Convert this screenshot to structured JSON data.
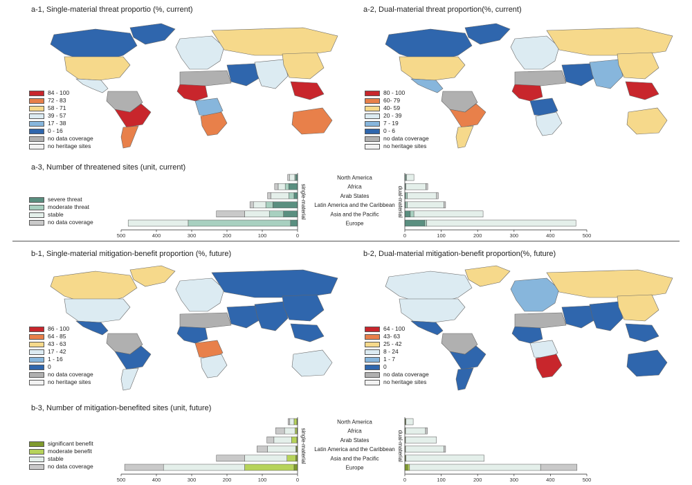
{
  "panels": {
    "a1": {
      "title": "a-1, Single-material threat proportio (%, current)",
      "legend": [
        {
          "label": "84 - 100",
          "color": "#c8262c"
        },
        {
          "label": "72 - 83",
          "color": "#e8804a"
        },
        {
          "label": "58 - 71",
          "color": "#f6d98b"
        },
        {
          "label": "39 - 57",
          "color": "#dcebf2"
        },
        {
          "label": "17 - 38",
          "color": "#87b6dc"
        },
        {
          "label": "0 - 16",
          "color": "#2f66ad"
        },
        {
          "label": "no data coverage",
          "color": "#b0b0b0"
        },
        {
          "label": "no heritage sites",
          "color": "#f2f2f2"
        }
      ]
    },
    "a2": {
      "title": "a-2, Dual-material threat proportion(%, current)",
      "legend": [
        {
          "label": "80 - 100",
          "color": "#c8262c"
        },
        {
          "label": "60- 79",
          "color": "#e8804a"
        },
        {
          "label": "40- 59",
          "color": "#f6d98b"
        },
        {
          "label": "20 - 39",
          "color": "#dcebf2"
        },
        {
          "label": "7 - 19",
          "color": "#87b6dc"
        },
        {
          "label": "0 - 6",
          "color": "#2f66ad"
        },
        {
          "label": "no data coverage",
          "color": "#b0b0b0"
        },
        {
          "label": "no heritage sites",
          "color": "#f2f2f2"
        }
      ]
    },
    "a3": {
      "title": "a-3, Number of threatened sites (unit, current)",
      "legend": [
        {
          "label": "severe threat",
          "color": "#5a8f80"
        },
        {
          "label": "moderate threat",
          "color": "#a8d0c0"
        },
        {
          "label": "stable",
          "color": "#e4efea"
        },
        {
          "label": "no data coverage",
          "color": "#c9c9c9"
        }
      ],
      "left_label": "single-material",
      "right_label": "dual-material"
    },
    "b1": {
      "title": "b-1, Single-material mitigation-benefit proportion  (%, future)",
      "legend": [
        {
          "label": "86 - 100",
          "color": "#c8262c"
        },
        {
          "label": "64 - 85",
          "color": "#e8804a"
        },
        {
          "label": "43 - 63",
          "color": "#f6d98b"
        },
        {
          "label": "17 - 42",
          "color": "#dcebf2"
        },
        {
          "label": "1 - 16",
          "color": "#87b6dc"
        },
        {
          "label": "0",
          "color": "#2f66ad"
        },
        {
          "label": "no data coverage",
          "color": "#b0b0b0"
        },
        {
          "label": "no heritage sites",
          "color": "#f2f2f2"
        }
      ]
    },
    "b2": {
      "title": "b-2, Dual-material mitigation-benefit proportion(%, future)",
      "legend": [
        {
          "label": "64 - 100",
          "color": "#c8262c"
        },
        {
          "label": "43- 63",
          "color": "#e8804a"
        },
        {
          "label": "25 - 42",
          "color": "#f6d98b"
        },
        {
          "label": "8 - 24",
          "color": "#dcebf2"
        },
        {
          "label": "1 - 7",
          "color": "#87b6dc"
        },
        {
          "label": "0",
          "color": "#2f66ad"
        },
        {
          "label": "no data coverage",
          "color": "#b0b0b0"
        },
        {
          "label": "no heritage sites",
          "color": "#f2f2f2"
        }
      ]
    },
    "b3": {
      "title": "b-3, Number of mitigation-benefited sites (unit, future)",
      "legend": [
        {
          "label": "significant benefit",
          "color": "#7f9a2e"
        },
        {
          "label": "moderate benefit",
          "color": "#b6d35a"
        },
        {
          "label": "stable",
          "color": "#e4efea"
        },
        {
          "label": "no data coverage",
          "color": "#c9c9c9"
        }
      ],
      "left_label": "single-material",
      "right_label": "dual-material"
    }
  },
  "chart_data": [
    {
      "type": "bar",
      "title": "a-3, Number of threatened sites (unit, current)",
      "categories": [
        "North America",
        "Africa",
        "Arab States",
        "Latin America and the Caribbean",
        "Asia and the Pacific",
        "Europe"
      ],
      "single_material": {
        "xlim": [
          0,
          500
        ],
        "ticks": [
          500,
          400,
          300,
          200,
          100,
          0
        ],
        "series": [
          {
            "name": "severe threat",
            "values": [
              5,
              25,
              10,
              70,
              40,
              20
            ]
          },
          {
            "name": "moderate threat",
            "values": [
              3,
              10,
              15,
              20,
              40,
              290
            ]
          },
          {
            "name": "stable",
            "values": [
              15,
              20,
              50,
              35,
              70,
              170
            ]
          },
          {
            "name": "no data coverage",
            "values": [
              5,
              10,
              10,
              10,
              80,
              0
            ]
          }
        ]
      },
      "dual_material": {
        "xlim": [
          0,
          500
        ],
        "ticks": [
          0,
          100,
          200,
          300,
          400,
          500
        ],
        "series": [
          {
            "name": "severe threat",
            "values": [
              2,
              1,
              2,
              2,
              15,
              55
            ]
          },
          {
            "name": "moderate threat",
            "values": [
              3,
              2,
              5,
              5,
              10,
              5
            ]
          },
          {
            "name": "stable",
            "values": [
              20,
              55,
              80,
              100,
              190,
              410
            ]
          },
          {
            "name": "no data coverage",
            "values": [
              0,
              5,
              5,
              5,
              0,
              0
            ]
          }
        ]
      }
    },
    {
      "type": "bar",
      "title": "b-3, Number of mitigation-benefited sites (unit, future)",
      "categories": [
        "North America",
        "Africa",
        "Arab States",
        "Latin America and the Caribbean",
        "Asia and the Pacific",
        "Europe"
      ],
      "single_material": {
        "xlim": [
          0,
          500
        ],
        "ticks": [
          500,
          400,
          300,
          200,
          100,
          0
        ],
        "series": [
          {
            "name": "significant benefit",
            "values": [
              2,
              2,
              2,
              3,
              5,
              10
            ]
          },
          {
            "name": "moderate benefit",
            "values": [
              8,
              5,
              15,
              2,
              25,
              140
            ]
          },
          {
            "name": "stable",
            "values": [
              12,
              30,
              50,
              80,
              120,
              230
            ]
          },
          {
            "name": "no data coverage",
            "values": [
              5,
              25,
              20,
              30,
              80,
              110
            ]
          }
        ]
      },
      "dual_material": {
        "xlim": [
          0,
          500
        ],
        "ticks": [
          0,
          100,
          200,
          300,
          400,
          500
        ],
        "series": [
          {
            "name": "significant benefit",
            "values": [
              2,
              1,
              1,
              1,
              2,
              8
            ]
          },
          {
            "name": "moderate benefit",
            "values": [
              1,
              1,
              1,
              1,
              1,
              5
            ]
          },
          {
            "name": "stable",
            "values": [
              20,
              55,
              85,
              105,
              215,
              360
            ]
          },
          {
            "name": "no data coverage",
            "values": [
              0,
              5,
              0,
              5,
              0,
              100
            ]
          }
        ]
      }
    }
  ],
  "maps": {
    "a1": {
      "ocean_color": "#ffffff",
      "fills": [
        "#2f66ad",
        "#2f66ad",
        "#f6d98b",
        "#dcebf2",
        "#c8262c",
        "#b0b0b0",
        "#e8804a",
        "#c8262c",
        "#87b6dc",
        "#e8804a",
        "#b0b0b0",
        "#dcebf2",
        "#f6d98b",
        "#2f66ad"
      ]
    },
    "a2": {
      "ocean_color": "#ffffff",
      "fills": [
        "#2f66ad",
        "#2f66ad",
        "#f6d98b",
        "#87b6dc",
        "#e8804a",
        "#b0b0b0",
        "#f6d98b",
        "#c8262c",
        "#2f66ad",
        "#dcebf2",
        "#b0b0b0",
        "#dcebf2",
        "#f6d98b",
        "#2f66ad"
      ]
    },
    "b1": {
      "ocean_color": "#ffffff",
      "fills": [
        "#f6d98b",
        "#f6d98b",
        "#dcebf2",
        "#2f66ad",
        "#2f66ad",
        "#b0b0b0",
        "#dcebf2",
        "#2f66ad",
        "#e8804a",
        "#dcebf2",
        "#b0b0b0",
        "#dcebf2",
        "#2f66ad",
        "#2f66ad"
      ]
    },
    "b2": {
      "ocean_color": "#ffffff",
      "fills": [
        "#dcebf2",
        "#f6d98b",
        "#dcebf2",
        "#2f66ad",
        "#2f66ad",
        "#b0b0b0",
        "#2f66ad",
        "#2f66ad",
        "#dcebf2",
        "#c8262c",
        "#b0b0b0",
        "#87b6dc",
        "#f6d98b",
        "#2f66ad"
      ]
    }
  }
}
